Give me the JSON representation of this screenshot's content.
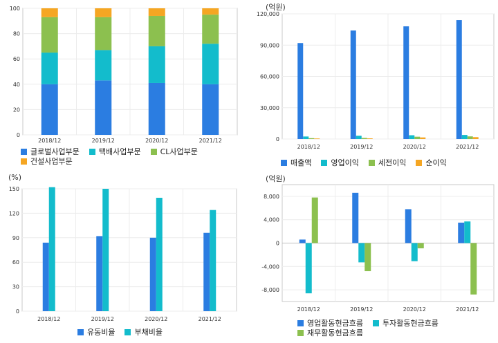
{
  "chart_data": [
    {
      "id": "segments",
      "type": "bar",
      "stacked": true,
      "unit": "",
      "categories": [
        "2018/12",
        "2019/12",
        "2020/12",
        "2021/12"
      ],
      "ylim": [
        0,
        100
      ],
      "yticks": [
        0,
        20,
        40,
        60,
        80,
        100
      ],
      "grid": true,
      "legend_position": "bottom",
      "series": [
        {
          "name": "글로벌사업부문",
          "color": "#2b7de1",
          "values": [
            40,
            43,
            41,
            40
          ]
        },
        {
          "name": "택배사업부문",
          "color": "#13bccc",
          "values": [
            25,
            24,
            29,
            32
          ]
        },
        {
          "name": "CL사업부문",
          "color": "#8cc04f",
          "values": [
            28,
            26,
            24,
            23
          ]
        },
        {
          "name": "건설사업부문",
          "color": "#f5a623",
          "values": [
            7,
            7,
            6,
            5
          ]
        }
      ]
    },
    {
      "id": "income",
      "type": "bar",
      "stacked": false,
      "unit": "(억원)",
      "categories": [
        "2018/12",
        "2019/12",
        "2020/12",
        "2021/12"
      ],
      "ylim": [
        0,
        120000
      ],
      "yticks": [
        0,
        30000,
        60000,
        90000,
        120000
      ],
      "ytick_labels": [
        "0",
        "30,000",
        "60,000",
        "90,000",
        "120,000"
      ],
      "grid": true,
      "legend_position": "bottom",
      "series": [
        {
          "name": "매출액",
          "color": "#2b7de1",
          "values": [
            92000,
            104000,
            108000,
            114000
          ]
        },
        {
          "name": "영업이익",
          "color": "#13bccc",
          "values": [
            2400,
            3100,
            3600,
            3900
          ]
        },
        {
          "name": "세전이익",
          "color": "#8cc04f",
          "values": [
            800,
            1000,
            2200,
            2500
          ]
        },
        {
          "name": "순이익",
          "color": "#f5a623",
          "values": [
            500,
            600,
            1500,
            1800
          ]
        }
      ]
    },
    {
      "id": "ratios",
      "type": "bar",
      "stacked": false,
      "unit": "(%)",
      "categories": [
        "2018/12",
        "2019/12",
        "2020/12",
        "2021/12"
      ],
      "ylim": [
        0,
        150
      ],
      "yticks": [
        0,
        30,
        60,
        90,
        120,
        150
      ],
      "grid": true,
      "legend_position": "bottom",
      "series": [
        {
          "name": "유동비율",
          "color": "#2b7de1",
          "values": [
            84,
            92,
            90,
            96
          ]
        },
        {
          "name": "부채비율",
          "color": "#13bccc",
          "values": [
            152,
            150,
            139,
            124
          ]
        }
      ]
    },
    {
      "id": "cashflow",
      "type": "bar",
      "stacked": false,
      "unit": "(억원)",
      "categories": [
        "2018/12",
        "2019/12",
        "2020/12",
        "2021/12"
      ],
      "ylim": [
        -10000,
        10000
      ],
      "yticks": [
        -8000,
        -4000,
        0,
        4000,
        8000
      ],
      "ytick_labels": [
        "-8,000",
        "-4,000",
        "0",
        "4,000",
        "8,000"
      ],
      "grid": true,
      "legend_position": "bottom",
      "series": [
        {
          "name": "영업활동현금흐름",
          "color": "#2b7de1",
          "values": [
            600,
            8600,
            5800,
            3500
          ]
        },
        {
          "name": "투자활동현금흐름",
          "color": "#13bccc",
          "values": [
            -8600,
            -3300,
            -3100,
            3700
          ]
        },
        {
          "name": "재무활동현금흐름",
          "color": "#8cc04f",
          "values": [
            7800,
            -4800,
            -900,
            -8800
          ]
        }
      ]
    }
  ]
}
